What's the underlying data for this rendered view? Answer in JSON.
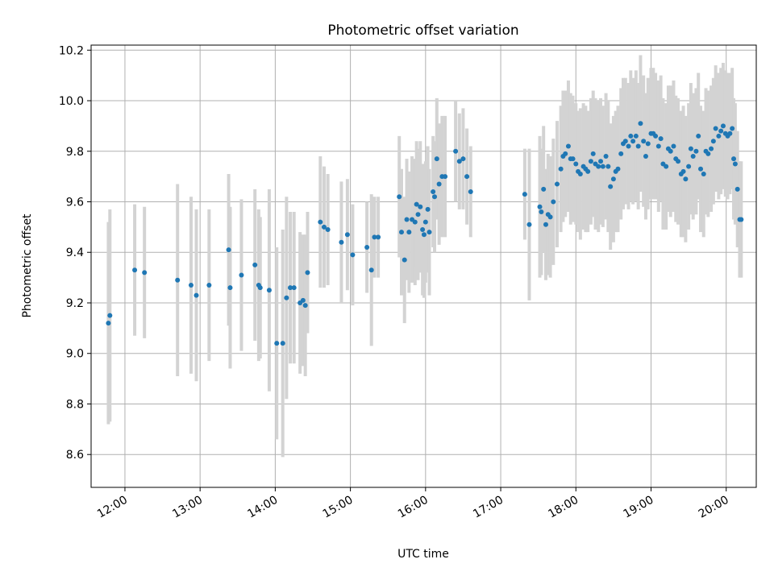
{
  "chart_data": {
    "type": "scatter",
    "title": "Photometric offset variation",
    "xlabel": "UTC time",
    "ylabel": "Photometric offset",
    "x_unit": "hours UTC",
    "xlim": [
      11.55,
      20.4
    ],
    "ylim": [
      8.47,
      10.22
    ],
    "x_ticks": [
      {
        "value": 12,
        "label": "12:00"
      },
      {
        "value": 13,
        "label": "13:00"
      },
      {
        "value": 14,
        "label": "14:00"
      },
      {
        "value": 15,
        "label": "15:00"
      },
      {
        "value": 16,
        "label": "16:00"
      },
      {
        "value": 17,
        "label": "17:00"
      },
      {
        "value": 18,
        "label": "18:00"
      },
      {
        "value": 19,
        "label": "19:00"
      },
      {
        "value": 20,
        "label": "20:00"
      }
    ],
    "y_ticks": [
      {
        "value": 8.6,
        "label": "8.6"
      },
      {
        "value": 8.8,
        "label": "8.8"
      },
      {
        "value": 9.0,
        "label": "9.0"
      },
      {
        "value": 9.2,
        "label": "9.2"
      },
      {
        "value": 9.4,
        "label": "9.4"
      },
      {
        "value": 9.6,
        "label": "9.6"
      },
      {
        "value": 9.8,
        "label": "9.8"
      },
      {
        "value": 10.0,
        "label": "10.0"
      },
      {
        "value": 10.2,
        "label": "10.2"
      }
    ],
    "grid": true,
    "legend": "none",
    "point_color": "#1f77b4",
    "errorbar_color": "#d3d3d3",
    "series": [
      {
        "points": [
          [
            11.78,
            9.12,
            0.4
          ],
          [
            11.8,
            9.15,
            0.42
          ],
          [
            12.13,
            9.33,
            0.26
          ],
          [
            12.26,
            9.32,
            0.26
          ],
          [
            12.7,
            9.29,
            0.38
          ],
          [
            12.88,
            9.27,
            0.35
          ],
          [
            12.95,
            9.23,
            0.34
          ],
          [
            13.12,
            9.27,
            0.3
          ],
          [
            13.38,
            9.41,
            0.3
          ],
          [
            13.4,
            9.26,
            0.32
          ],
          [
            13.55,
            9.31,
            0.3
          ],
          [
            13.73,
            9.35,
            0.3
          ],
          [
            13.78,
            9.27,
            0.3
          ],
          [
            13.8,
            9.26,
            0.28
          ],
          [
            13.92,
            9.25,
            0.4
          ],
          [
            14.02,
            9.04,
            0.38
          ],
          [
            14.1,
            9.04,
            0.45
          ],
          [
            14.15,
            9.22,
            0.4
          ],
          [
            14.2,
            9.26,
            0.3
          ],
          [
            14.25,
            9.26,
            0.3
          ],
          [
            14.33,
            9.2,
            0.28
          ],
          [
            14.37,
            9.21,
            0.26
          ],
          [
            14.4,
            9.19,
            0.28
          ],
          [
            14.43,
            9.32,
            0.24
          ],
          [
            14.6,
            9.52,
            0.26
          ],
          [
            14.65,
            9.5,
            0.24
          ],
          [
            14.7,
            9.49,
            0.22
          ],
          [
            14.88,
            9.44,
            0.24
          ],
          [
            14.96,
            9.47,
            0.22
          ],
          [
            15.03,
            9.39,
            0.2
          ],
          [
            15.22,
            9.42,
            0.18
          ],
          [
            15.28,
            9.33,
            0.3
          ],
          [
            15.32,
            9.46,
            0.16
          ],
          [
            15.37,
            9.46,
            0.16
          ],
          [
            15.65,
            9.62,
            0.24
          ],
          [
            15.68,
            9.48,
            0.25
          ],
          [
            15.72,
            9.37,
            0.25
          ],
          [
            15.75,
            9.53,
            0.24
          ],
          [
            15.78,
            9.48,
            0.24
          ],
          [
            15.82,
            9.53,
            0.25
          ],
          [
            15.86,
            9.52,
            0.25
          ],
          [
            15.88,
            9.59,
            0.25
          ],
          [
            15.9,
            9.55,
            0.26
          ],
          [
            15.93,
            9.58,
            0.26
          ],
          [
            15.96,
            9.49,
            0.26
          ],
          [
            15.98,
            9.47,
            0.25
          ],
          [
            16.0,
            9.52,
            0.24
          ],
          [
            16.03,
            9.57,
            0.25
          ],
          [
            16.05,
            9.48,
            0.25
          ],
          [
            16.1,
            9.64,
            0.22
          ],
          [
            16.12,
            9.62,
            0.22
          ],
          [
            16.15,
            9.77,
            0.24
          ],
          [
            16.18,
            9.67,
            0.24
          ],
          [
            16.22,
            9.7,
            0.24
          ],
          [
            16.26,
            9.7,
            0.24
          ],
          [
            16.4,
            9.8,
            0.2
          ],
          [
            16.45,
            9.76,
            0.19
          ],
          [
            16.5,
            9.77,
            0.2
          ],
          [
            16.55,
            9.7,
            0.19
          ],
          [
            16.6,
            9.64,
            0.18
          ],
          [
            17.32,
            9.63,
            0.18
          ],
          [
            17.38,
            9.51,
            0.3
          ],
          [
            17.52,
            9.58,
            0.28
          ],
          [
            17.54,
            9.56,
            0.25
          ],
          [
            17.57,
            9.65,
            0.25
          ],
          [
            17.6,
            9.51,
            0.22
          ],
          [
            17.63,
            9.55,
            0.24
          ],
          [
            17.66,
            9.54,
            0.24
          ],
          [
            17.7,
            9.6,
            0.25
          ],
          [
            17.75,
            9.67,
            0.25
          ],
          [
            17.8,
            9.73,
            0.25
          ],
          [
            17.83,
            9.78,
            0.26
          ],
          [
            17.86,
            9.79,
            0.25
          ],
          [
            17.9,
            9.82,
            0.26
          ],
          [
            17.93,
            9.77,
            0.26
          ],
          [
            17.96,
            9.77,
            0.25
          ],
          [
            18.0,
            9.75,
            0.24
          ],
          [
            18.03,
            9.72,
            0.24
          ],
          [
            18.06,
            9.71,
            0.26
          ],
          [
            18.1,
            9.74,
            0.25
          ],
          [
            18.13,
            9.73,
            0.25
          ],
          [
            18.16,
            9.72,
            0.24
          ],
          [
            18.2,
            9.76,
            0.25
          ],
          [
            18.23,
            9.79,
            0.25
          ],
          [
            18.26,
            9.75,
            0.26
          ],
          [
            18.3,
            9.74,
            0.26
          ],
          [
            18.33,
            9.76,
            0.25
          ],
          [
            18.36,
            9.74,
            0.24
          ],
          [
            18.4,
            9.78,
            0.25
          ],
          [
            18.43,
            9.74,
            0.26
          ],
          [
            18.46,
            9.66,
            0.25
          ],
          [
            18.5,
            9.69,
            0.25
          ],
          [
            18.53,
            9.72,
            0.24
          ],
          [
            18.56,
            9.73,
            0.25
          ],
          [
            18.6,
            9.79,
            0.26
          ],
          [
            18.63,
            9.83,
            0.26
          ],
          [
            18.66,
            9.84,
            0.25
          ],
          [
            18.7,
            9.82,
            0.25
          ],
          [
            18.73,
            9.86,
            0.26
          ],
          [
            18.76,
            9.84,
            0.25
          ],
          [
            18.8,
            9.86,
            0.26
          ],
          [
            18.83,
            9.82,
            0.25
          ],
          [
            18.86,
            9.91,
            0.27
          ],
          [
            18.9,
            9.84,
            0.26
          ],
          [
            18.93,
            9.78,
            0.25
          ],
          [
            18.96,
            9.83,
            0.26
          ],
          [
            19.0,
            9.87,
            0.26
          ],
          [
            19.03,
            9.87,
            0.26
          ],
          [
            19.06,
            9.86,
            0.25
          ],
          [
            19.1,
            9.82,
            0.26
          ],
          [
            19.13,
            9.85,
            0.25
          ],
          [
            19.16,
            9.75,
            0.26
          ],
          [
            19.2,
            9.74,
            0.25
          ],
          [
            19.23,
            9.81,
            0.25
          ],
          [
            19.26,
            9.8,
            0.26
          ],
          [
            19.3,
            9.82,
            0.26
          ],
          [
            19.33,
            9.77,
            0.25
          ],
          [
            19.36,
            9.76,
            0.25
          ],
          [
            19.4,
            9.71,
            0.25
          ],
          [
            19.43,
            9.72,
            0.26
          ],
          [
            19.46,
            9.69,
            0.25
          ],
          [
            19.5,
            9.74,
            0.25
          ],
          [
            19.53,
            9.81,
            0.26
          ],
          [
            19.56,
            9.78,
            0.25
          ],
          [
            19.6,
            9.8,
            0.25
          ],
          [
            19.63,
            9.86,
            0.25
          ],
          [
            19.66,
            9.73,
            0.25
          ],
          [
            19.7,
            9.71,
            0.25
          ],
          [
            19.73,
            9.8,
            0.25
          ],
          [
            19.76,
            9.79,
            0.25
          ],
          [
            19.8,
            9.81,
            0.25
          ],
          [
            19.83,
            9.84,
            0.25
          ],
          [
            19.86,
            9.89,
            0.25
          ],
          [
            19.9,
            9.86,
            0.25
          ],
          [
            19.93,
            9.88,
            0.25
          ],
          [
            19.96,
            9.9,
            0.25
          ],
          [
            19.99,
            9.87,
            0.25
          ],
          [
            20.02,
            9.86,
            0.25
          ],
          [
            20.05,
            9.87,
            0.24
          ],
          [
            20.08,
            9.89,
            0.24
          ],
          [
            20.1,
            9.77,
            0.24
          ],
          [
            20.12,
            9.75,
            0.24
          ],
          [
            20.15,
            9.65,
            0.23
          ],
          [
            20.18,
            9.53,
            0.23
          ],
          [
            20.2,
            9.53,
            0.23
          ]
        ]
      }
    ]
  }
}
